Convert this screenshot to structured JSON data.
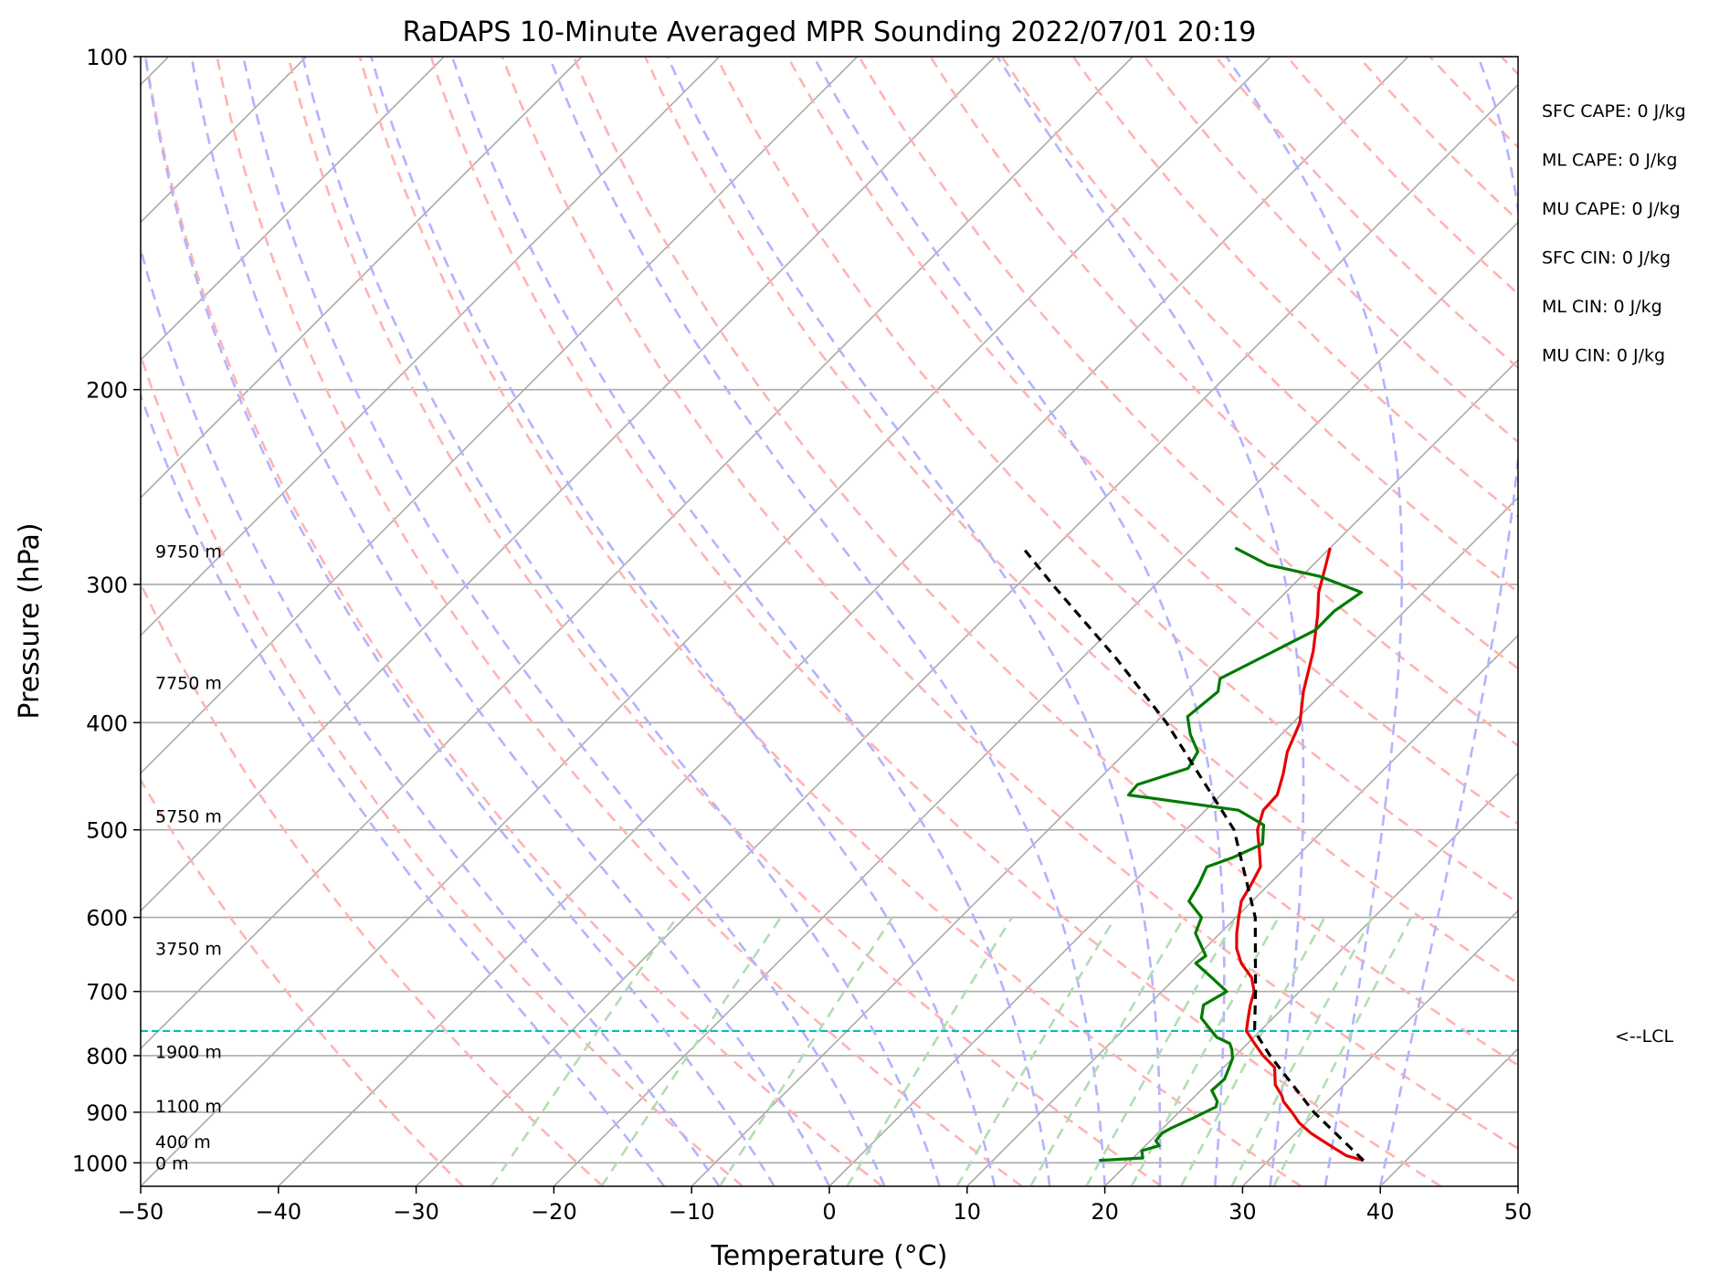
{
  "chart_data": {
    "type": "skew-t",
    "title": "RaDAPS 10-Minute Averaged MPR Sounding 2022/07/01 20:19",
    "xlabel": "Temperature (°C)",
    "ylabel": "Pressure (hPa)",
    "xlim": [
      -50,
      50
    ],
    "ylim": [
      1050,
      100
    ],
    "log_pressure": true,
    "x_ticks": [
      -50,
      -40,
      -30,
      -20,
      -10,
      0,
      10,
      20,
      30,
      40,
      50
    ],
    "x_tick_labels": [
      "−50",
      "−40",
      "−30",
      "−20",
      "−10",
      "0",
      "10",
      "20",
      "30",
      "40",
      "50"
    ],
    "y_ticks": [
      100,
      200,
      300,
      400,
      500,
      600,
      700,
      800,
      900,
      1000
    ],
    "y_tick_labels": [
      "100",
      "200",
      "300",
      "400",
      "500",
      "600",
      "700",
      "800",
      "900",
      "1000"
    ],
    "grid": true,
    "colors": {
      "temperature": "#e60000",
      "dewpoint": "#007a00",
      "parcel": "#000000",
      "lcl": "#00bfbf",
      "isotherm": "#aaaaaa",
      "dry_adiabat": "#ffb3b3",
      "moist_adiabat": "#b3b3ff",
      "mixing_ratio": "#b3dcb3"
    },
    "height_labels": [
      {
        "text": "9750 m",
        "p": 280
      },
      {
        "text": "7750 m",
        "p": 368
      },
      {
        "text": "5750 m",
        "p": 486
      },
      {
        "text": "3750 m",
        "p": 640
      },
      {
        "text": "1900 m",
        "p": 793
      },
      {
        "text": "1100 m",
        "p": 888
      },
      {
        "text": "400 m",
        "p": 957
      },
      {
        "text": "0 m",
        "p": 1000
      }
    ],
    "stats": [
      "SFC CAPE: 0 J/kg",
      "ML CAPE: 0 J/kg",
      "MU CAPE: 0 J/kg",
      "SFC CIN: 0 J/kg",
      "ML CIN: 0 J/kg",
      "MU CIN: 0 J/kg"
    ],
    "lcl": {
      "p": 760,
      "label": "<--LCL"
    },
    "series": [
      {
        "name": "",
        "role": "temperature",
        "p": [
          995,
          985,
          970,
          955,
          940,
          920,
          900,
          880,
          870,
          850,
          820,
          800,
          780,
          760,
          740,
          720,
          700,
          680,
          660,
          640,
          620,
          600,
          580,
          560,
          540,
          520,
          500,
          480,
          465,
          445,
          425,
          400,
          375,
          345,
          320,
          305,
          290,
          278
        ],
        "t": [
          36.9,
          35.3,
          33.9,
          32.5,
          31.1,
          29.5,
          28.2,
          26.8,
          26.3,
          25.0,
          23.7,
          22.0,
          20.5,
          19.0,
          18.2,
          17.4,
          16.7,
          15.5,
          13.7,
          12.3,
          11.2,
          10.2,
          9.2,
          8.7,
          8.1,
          6.7,
          5.2,
          4.2,
          4.1,
          3.0,
          1.7,
          0.5,
          -1.5,
          -3.7,
          -6.0,
          -7.6,
          -8.9,
          -10.0
        ]
      },
      {
        "name": "",
        "role": "dewpoint",
        "p": [
          995,
          990,
          975,
          965,
          955,
          940,
          930,
          910,
          890,
          880,
          860,
          840,
          820,
          805,
          790,
          780,
          770,
          740,
          720,
          700,
          680,
          660,
          650,
          620,
          600,
          580,
          560,
          540,
          530,
          515,
          495,
          480,
          465,
          455,
          440,
          425,
          410,
          395,
          375,
          365,
          345,
          330,
          317,
          305,
          295,
          288,
          278
        ],
        "t": [
          17.7,
          20.7,
          20.1,
          21.0,
          20.4,
          20.3,
          20.6,
          21.5,
          22.3,
          22.0,
          20.8,
          20.9,
          20.4,
          20.0,
          19.3,
          18.7,
          17.3,
          14.8,
          14.0,
          14.7,
          12.6,
          10.4,
          10.6,
          8.2,
          7.5,
          5.4,
          4.9,
          4.2,
          5.4,
          6.6,
          5.3,
          2.4,
          -6.7,
          -6.8,
          -4.3,
          -4.8,
          -6.6,
          -8.1,
          -7.7,
          -8.5,
          -6.6,
          -5.1,
          -5.1,
          -4.5,
          -8.7,
          -13.3,
          -16.9
        ]
      },
      {
        "name": "",
        "role": "parcel",
        "p": [
          995,
          900,
          800,
          760,
          700,
          600,
          500,
          400,
          350,
          300,
          278
        ],
        "t": [
          36.9,
          29.8,
          22.5,
          19.6,
          16.8,
          11.4,
          3.5,
          -9.2,
          -17.5,
          -27.5,
          -32.3
        ]
      }
    ]
  }
}
